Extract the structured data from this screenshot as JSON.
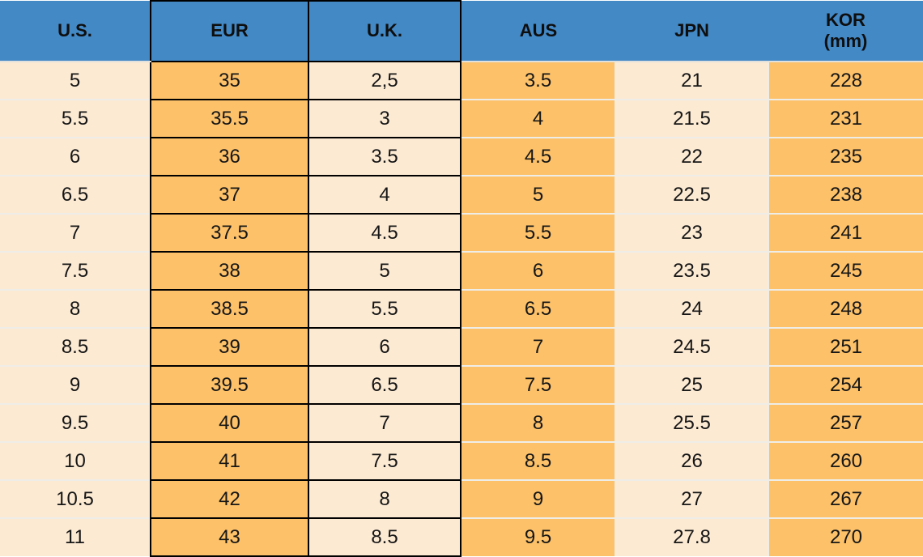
{
  "colors": {
    "header_bg": "#4389C6",
    "orange_cell": "#FCC169",
    "cream_cell": "#FCEAD3",
    "black_border": "#000000",
    "row_separator": "#EFEDE8"
  },
  "table": {
    "headers": [
      {
        "label": "U.S."
      },
      {
        "label": "EUR"
      },
      {
        "label": "U.K."
      },
      {
        "label": "AUS"
      },
      {
        "label": "JPN"
      },
      {
        "label": "KOR",
        "sub": "(mm)"
      }
    ]
  },
  "chart_data": {
    "type": "table",
    "columns": [
      "U.S.",
      "EUR",
      "U.K.",
      "AUS",
      "JPN",
      "KOR (mm)"
    ],
    "rows": [
      [
        "5",
        "35",
        "2,5",
        "3.5",
        "21",
        "228"
      ],
      [
        "5.5",
        "35.5",
        "3",
        "4",
        "21.5",
        "231"
      ],
      [
        "6",
        "36",
        "3.5",
        "4.5",
        "22",
        "235"
      ],
      [
        "6.5",
        "37",
        "4",
        "5",
        "22.5",
        "238"
      ],
      [
        "7",
        "37.5",
        "4.5",
        "5.5",
        "23",
        "241"
      ],
      [
        "7.5",
        "38",
        "5",
        "6",
        "23.5",
        "245"
      ],
      [
        "8",
        "38.5",
        "5.5",
        "6.5",
        "24",
        "248"
      ],
      [
        "8.5",
        "39",
        "6",
        "7",
        "24.5",
        "251"
      ],
      [
        "9",
        "39.5",
        "6.5",
        "7.5",
        "25",
        "254"
      ],
      [
        "9.5",
        "40",
        "7",
        "8",
        "25.5",
        "257"
      ],
      [
        "10",
        "41",
        "7.5",
        "8.5",
        "26",
        "260"
      ],
      [
        "10.5",
        "42",
        "8",
        "9",
        "27",
        "267"
      ],
      [
        "11",
        "43",
        "8.5",
        "9.5",
        "27.8",
        "270"
      ]
    ]
  }
}
